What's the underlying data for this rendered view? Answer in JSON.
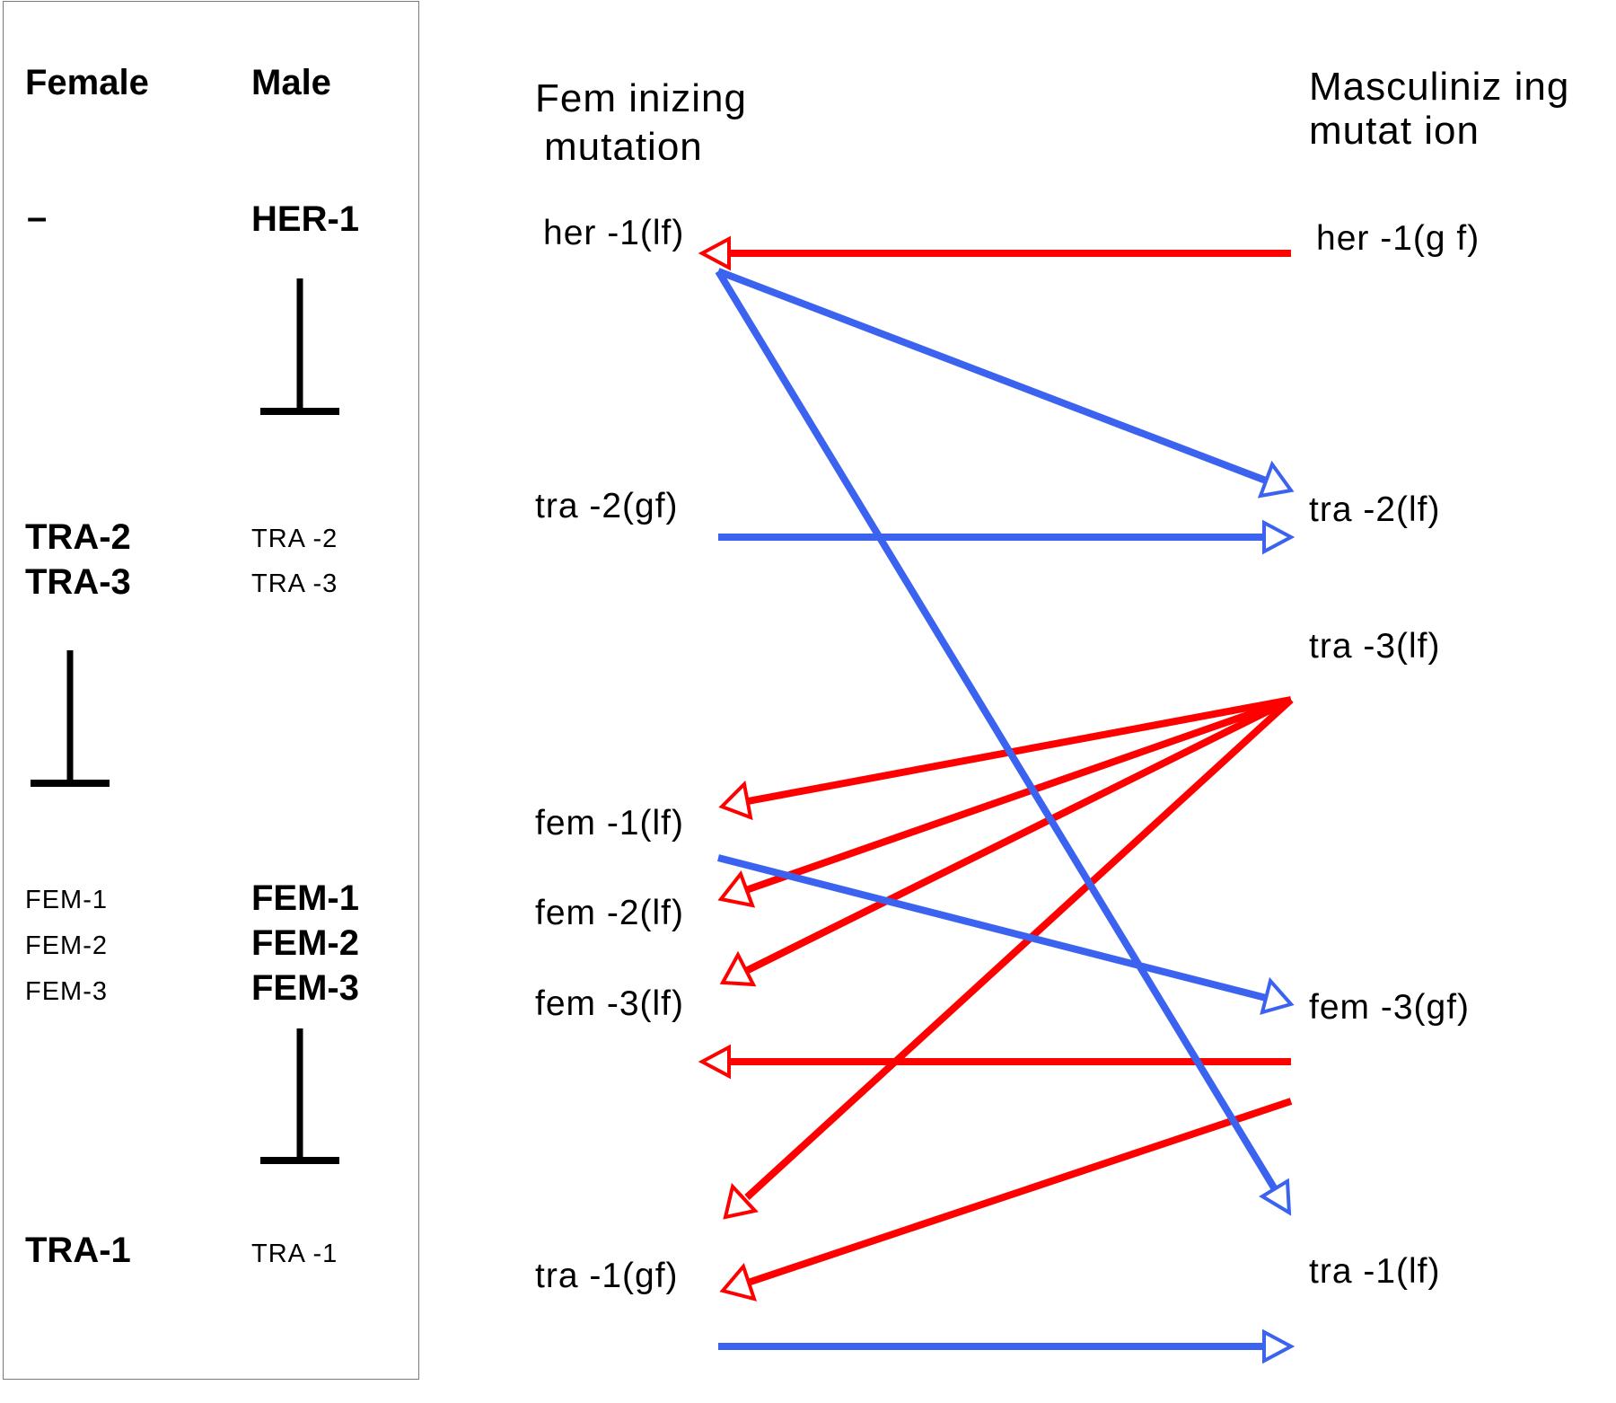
{
  "left_panel": {
    "female_header": "Female",
    "male_header": "Male",
    "female_her": "–",
    "male_her": "HER-1",
    "female_tra2": "TRA-2",
    "female_tra3": "TRA-3",
    "male_tra2": "TRA -2",
    "male_tra3": "TRA -3",
    "female_fem1": "FEM-1",
    "female_fem2": "FEM-2",
    "female_fem3": "FEM-3",
    "male_fem1": "FEM-1",
    "male_fem2": "FEM-2",
    "male_fem3": "FEM-3",
    "female_tra1": "TRA-1",
    "male_tra1": "TRA -1"
  },
  "right_panel": {
    "feminizing_header_line1": "Fem inizing",
    "feminizing_header_line2": "mutation",
    "masculinizing_header_line1": "Masculiniz ing",
    "masculinizing_header_line2": "mutat ion",
    "feminizing": [
      "her -1(lf)",
      "tra -2(gf)",
      "fem -1(lf)",
      "fem -2(lf)",
      "fem -3(lf)",
      "tra -1(gf)"
    ],
    "masculinizing": [
      "her -1(g f)",
      "tra -2(lf)",
      "tra -3(lf)",
      "fem -3(gf)",
      "tra -1(lf)"
    ]
  },
  "colors": {
    "red_arrow": "#ff0000",
    "blue_arrow": "#3b63f0",
    "inhibition_bar": "#000000",
    "panel_border": "#7a7a7a"
  }
}
